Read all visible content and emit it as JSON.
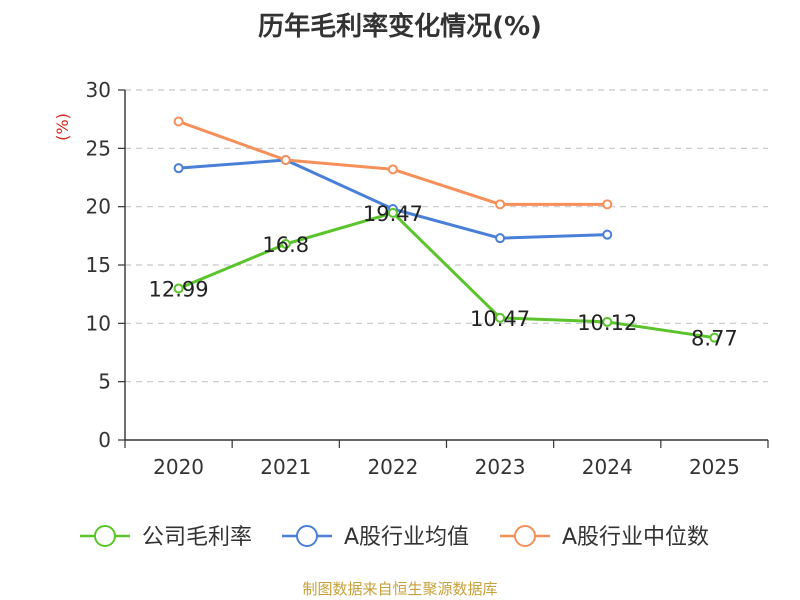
{
  "chart_data": {
    "type": "line",
    "title": "历年毛利率变化情况(%)",
    "ylabel": "(%)",
    "xlabel": "",
    "categories": [
      "2020",
      "2021",
      "2022",
      "2023",
      "2024",
      "2025"
    ],
    "ylim": [
      0,
      30
    ],
    "yticks": [
      0,
      5,
      10,
      15,
      20,
      25,
      30
    ],
    "grid": true,
    "legend_position": "bottom",
    "series": [
      {
        "name": "公司毛利率",
        "color": "#5bc42c",
        "values": [
          12.99,
          16.8,
          19.47,
          10.47,
          10.12,
          8.77
        ],
        "labels": [
          "12.99",
          "16.8",
          "19.47",
          "10.47",
          "10.12",
          "8.77"
        ]
      },
      {
        "name": "A股行业均值",
        "color": "#4a7fd8",
        "values": [
          23.3,
          24.0,
          19.8,
          17.3,
          17.6,
          null
        ]
      },
      {
        "name": "A股行业中位数",
        "color": "#f5905a",
        "values": [
          27.3,
          24.0,
          23.2,
          20.2,
          20.2,
          null
        ]
      }
    ]
  },
  "source": "制图数据来自恒生聚源数据库"
}
